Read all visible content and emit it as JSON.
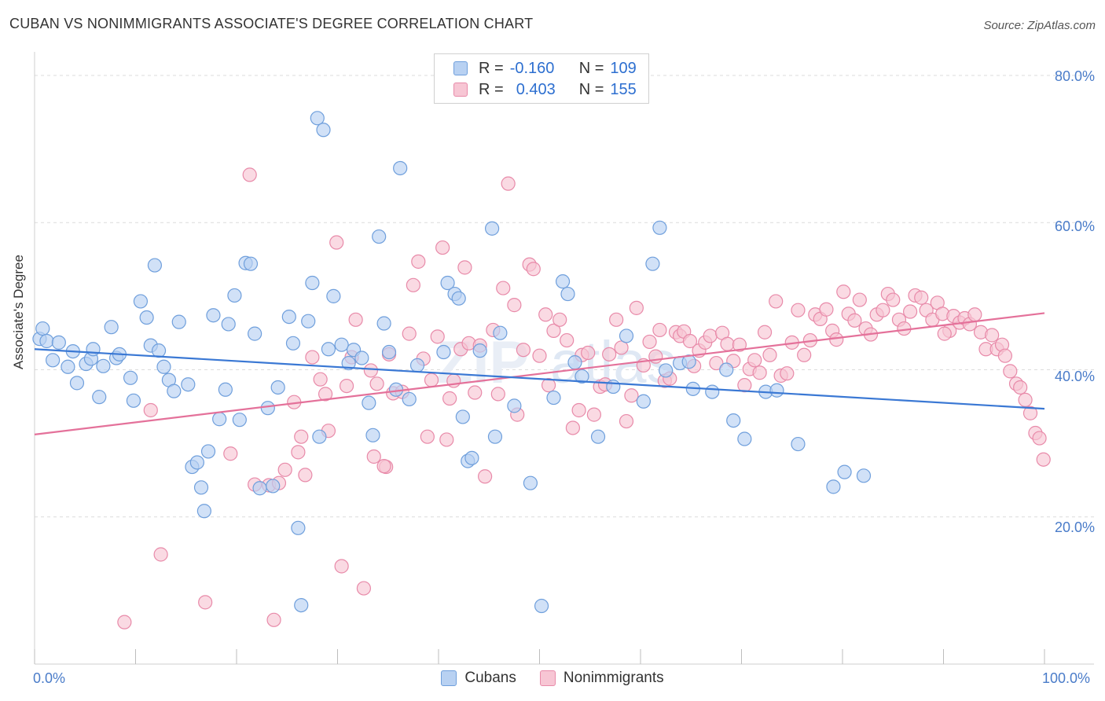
{
  "header": {
    "title": "CUBAN VS NONIMMIGRANTS ASSOCIATE'S DEGREE CORRELATION CHART",
    "source": "Source: ZipAtlas.com"
  },
  "colors": {
    "cuban_fill": "#b8d1f2",
    "cuban_stroke": "#6f9fdc",
    "cuban_line": "#3a78d4",
    "nonimm_fill": "#f7c6d4",
    "nonimm_stroke": "#e88aa9",
    "nonimm_line": "#e4719a",
    "value_text": "#2d6fd0"
  },
  "legend": {
    "rows": [
      {
        "r_label": "R =",
        "r_value": "-0.160",
        "n_label": "N =",
        "n_value": "109"
      },
      {
        "r_label": "R =",
        "r_value": "0.403",
        "n_label": "N =",
        "n_value": "155"
      }
    ]
  },
  "bottom_legend": {
    "cubans": "Cubans",
    "nonimmigrants": "Nonimmigrants"
  },
  "chart_data": {
    "type": "scatter",
    "title": "CUBAN VS NONIMMIGRANTS ASSOCIATE'S DEGREE CORRELATION CHART",
    "xlabel": "",
    "ylabel": "Associate's Degree",
    "xlim": [
      0,
      100
    ],
    "ylim": [
      0,
      82
    ],
    "x_tick_labels": [
      "0.0%",
      "100.0%"
    ],
    "y_ticks": [
      20,
      40,
      60,
      80
    ],
    "y_tick_labels": [
      "20.0%",
      "40.0%",
      "60.0%",
      "80.0%"
    ],
    "grid": true,
    "series": [
      {
        "name": "Cubans",
        "r": -0.16,
        "n": 109,
        "trend": {
          "x": [
            0,
            100
          ],
          "y": [
            42.8,
            34.7
          ]
        },
        "points": [
          [
            0.5,
            44.2
          ],
          [
            0.8,
            45.6
          ],
          [
            1.2,
            43.9
          ],
          [
            1.8,
            41.3
          ],
          [
            2.4,
            43.7
          ],
          [
            3.3,
            40.4
          ],
          [
            3.8,
            42.5
          ],
          [
            4.2,
            38.2
          ],
          [
            5.1,
            40.8
          ],
          [
            5.6,
            41.5
          ],
          [
            5.8,
            42.8
          ],
          [
            6.4,
            36.3
          ],
          [
            6.8,
            40.5
          ],
          [
            7.6,
            45.8
          ],
          [
            8.1,
            41.6
          ],
          [
            8.4,
            42.1
          ],
          [
            9.5,
            38.9
          ],
          [
            9.8,
            35.8
          ],
          [
            10.5,
            49.3
          ],
          [
            11.1,
            47.1
          ],
          [
            11.5,
            43.3
          ],
          [
            11.9,
            54.2
          ],
          [
            12.3,
            42.6
          ],
          [
            12.8,
            40.4
          ],
          [
            13.3,
            38.6
          ],
          [
            13.8,
            37.1
          ],
          [
            14.3,
            46.5
          ],
          [
            15.2,
            38.0
          ],
          [
            15.6,
            26.8
          ],
          [
            16.1,
            27.4
          ],
          [
            16.5,
            24.0
          ],
          [
            16.8,
            20.8
          ],
          [
            17.2,
            28.9
          ],
          [
            17.7,
            47.4
          ],
          [
            18.3,
            33.3
          ],
          [
            18.9,
            37.3
          ],
          [
            19.2,
            46.2
          ],
          [
            19.8,
            50.1
          ],
          [
            20.3,
            33.2
          ],
          [
            20.9,
            54.5
          ],
          [
            21.4,
            54.4
          ],
          [
            21.8,
            44.9
          ],
          [
            22.3,
            23.9
          ],
          [
            23.1,
            34.8
          ],
          [
            23.6,
            24.2
          ],
          [
            24.1,
            37.6
          ],
          [
            25.2,
            47.2
          ],
          [
            25.6,
            43.6
          ],
          [
            26.1,
            18.5
          ],
          [
            26.4,
            8.0
          ],
          [
            27.1,
            46.6
          ],
          [
            27.5,
            51.8
          ],
          [
            28.2,
            30.9
          ],
          [
            29.1,
            42.8
          ],
          [
            29.6,
            50.0
          ],
          [
            30.4,
            43.4
          ],
          [
            31.1,
            40.9
          ],
          [
            31.6,
            42.7
          ],
          [
            32.4,
            41.6
          ],
          [
            33.1,
            35.5
          ],
          [
            33.5,
            31.1
          ],
          [
            34.1,
            58.1
          ],
          [
            34.6,
            46.3
          ],
          [
            35.1,
            42.4
          ],
          [
            35.8,
            37.3
          ],
          [
            36.2,
            67.4
          ],
          [
            37.1,
            36.0
          ],
          [
            37.9,
            40.6
          ],
          [
            28.0,
            74.2
          ],
          [
            28.6,
            72.6
          ],
          [
            40.5,
            42.4
          ],
          [
            40.9,
            51.8
          ],
          [
            41.6,
            50.3
          ],
          [
            42.0,
            49.7
          ],
          [
            42.4,
            33.6
          ],
          [
            42.9,
            27.6
          ],
          [
            43.3,
            28.0
          ],
          [
            44.1,
            42.6
          ],
          [
            45.3,
            59.2
          ],
          [
            45.6,
            30.9
          ],
          [
            46.1,
            45.0
          ],
          [
            47.5,
            35.1
          ],
          [
            49.1,
            24.6
          ],
          [
            50.2,
            7.9
          ],
          [
            51.4,
            36.2
          ],
          [
            52.3,
            52.0
          ],
          [
            52.8,
            50.3
          ],
          [
            53.5,
            41.0
          ],
          [
            54.2,
            39.1
          ],
          [
            55.8,
            30.9
          ],
          [
            57.3,
            37.7
          ],
          [
            58.6,
            44.6
          ],
          [
            60.3,
            35.7
          ],
          [
            61.2,
            54.4
          ],
          [
            61.9,
            59.3
          ],
          [
            62.5,
            39.9
          ],
          [
            63.9,
            40.9
          ],
          [
            64.8,
            41.1
          ],
          [
            65.2,
            37.4
          ],
          [
            67.1,
            37.0
          ],
          [
            68.5,
            40.0
          ],
          [
            69.2,
            33.1
          ],
          [
            70.3,
            30.6
          ],
          [
            72.4,
            37.0
          ],
          [
            73.5,
            37.2
          ],
          [
            75.6,
            29.9
          ],
          [
            79.1,
            24.1
          ],
          [
            80.2,
            26.1
          ],
          [
            82.1,
            25.6
          ]
        ]
      },
      {
        "name": "Nonimmigrants",
        "r": 0.403,
        "n": 155,
        "trend": {
          "x": [
            0,
            100
          ],
          "y": [
            31.2,
            47.7
          ]
        },
        "points": [
          [
            8.9,
            5.7
          ],
          [
            11.5,
            34.5
          ],
          [
            12.5,
            14.9
          ],
          [
            16.9,
            8.4
          ],
          [
            19.4,
            28.6
          ],
          [
            21.3,
            66.5
          ],
          [
            21.8,
            24.4
          ],
          [
            23.2,
            24.3
          ],
          [
            23.7,
            6.0
          ],
          [
            24.2,
            24.6
          ],
          [
            24.8,
            26.4
          ],
          [
            25.7,
            35.6
          ],
          [
            26.1,
            28.8
          ],
          [
            26.4,
            30.9
          ],
          [
            26.8,
            25.7
          ],
          [
            27.5,
            41.7
          ],
          [
            28.3,
            38.7
          ],
          [
            28.8,
            36.7
          ],
          [
            29.1,
            31.7
          ],
          [
            29.9,
            57.3
          ],
          [
            30.4,
            13.3
          ],
          [
            30.9,
            37.8
          ],
          [
            31.4,
            41.7
          ],
          [
            31.8,
            46.8
          ],
          [
            32.6,
            10.3
          ],
          [
            33.3,
            39.9
          ],
          [
            33.6,
            28.2
          ],
          [
            33.9,
            38.1
          ],
          [
            34.8,
            26.8
          ],
          [
            35.1,
            42.1
          ],
          [
            35.5,
            36.8
          ],
          [
            36.4,
            37.0
          ],
          [
            37.1,
            44.9
          ],
          [
            37.5,
            51.5
          ],
          [
            38.0,
            54.7
          ],
          [
            38.5,
            41.5
          ],
          [
            38.9,
            30.9
          ],
          [
            39.3,
            38.6
          ],
          [
            39.9,
            44.5
          ],
          [
            40.4,
            56.6
          ],
          [
            40.8,
            30.5
          ],
          [
            41.1,
            36.1
          ],
          [
            41.5,
            38.5
          ],
          [
            42.2,
            42.8
          ],
          [
            42.6,
            53.9
          ],
          [
            43.0,
            43.6
          ],
          [
            43.6,
            36.9
          ],
          [
            44.1,
            43.3
          ],
          [
            44.6,
            25.5
          ],
          [
            45.4,
            45.4
          ],
          [
            45.9,
            36.7
          ],
          [
            46.4,
            51.1
          ],
          [
            46.9,
            65.3
          ],
          [
            47.5,
            48.8
          ],
          [
            47.8,
            33.9
          ],
          [
            48.4,
            42.7
          ],
          [
            49.0,
            54.3
          ],
          [
            49.4,
            53.7
          ],
          [
            50.0,
            41.9
          ],
          [
            50.6,
            47.5
          ],
          [
            50.9,
            37.9
          ],
          [
            51.4,
            45.3
          ],
          [
            52.0,
            46.8
          ],
          [
            52.7,
            44.0
          ],
          [
            53.3,
            32.1
          ],
          [
            53.9,
            34.5
          ],
          [
            54.2,
            42.0
          ],
          [
            54.8,
            42.3
          ],
          [
            55.4,
            33.9
          ],
          [
            56.0,
            37.7
          ],
          [
            56.5,
            38.0
          ],
          [
            56.9,
            42.1
          ],
          [
            57.6,
            46.8
          ],
          [
            58.1,
            43.0
          ],
          [
            58.6,
            33.0
          ],
          [
            59.1,
            36.5
          ],
          [
            59.6,
            48.4
          ],
          [
            60.3,
            40.6
          ],
          [
            60.9,
            43.8
          ],
          [
            61.5,
            41.8
          ],
          [
            61.9,
            45.4
          ],
          [
            62.4,
            38.5
          ],
          [
            62.9,
            38.8
          ],
          [
            63.5,
            45.1
          ],
          [
            63.9,
            44.6
          ],
          [
            64.3,
            45.2
          ],
          [
            64.9,
            43.9
          ],
          [
            65.3,
            40.5
          ],
          [
            65.8,
            42.6
          ],
          [
            66.4,
            43.7
          ],
          [
            66.9,
            44.6
          ],
          [
            67.5,
            40.9
          ],
          [
            68.1,
            45.0
          ],
          [
            68.6,
            43.5
          ],
          [
            69.2,
            41.2
          ],
          [
            69.8,
            43.4
          ],
          [
            70.3,
            37.9
          ],
          [
            70.8,
            40.1
          ],
          [
            71.3,
            41.3
          ],
          [
            71.8,
            39.6
          ],
          [
            72.3,
            45.1
          ],
          [
            72.8,
            42.0
          ],
          [
            73.4,
            49.3
          ],
          [
            73.9,
            39.2
          ],
          [
            74.5,
            39.5
          ],
          [
            75.0,
            43.7
          ],
          [
            75.6,
            48.1
          ],
          [
            76.2,
            42.0
          ],
          [
            76.8,
            44.0
          ],
          [
            77.3,
            47.5
          ],
          [
            77.8,
            46.9
          ],
          [
            78.4,
            48.2
          ],
          [
            79.0,
            45.3
          ],
          [
            79.4,
            44.1
          ],
          [
            80.1,
            50.6
          ],
          [
            80.6,
            47.6
          ],
          [
            81.2,
            46.7
          ],
          [
            81.7,
            49.5
          ],
          [
            82.3,
            45.6
          ],
          [
            82.8,
            44.8
          ],
          [
            83.4,
            47.5
          ],
          [
            84.0,
            48.1
          ],
          [
            84.5,
            50.3
          ],
          [
            85.0,
            49.5
          ],
          [
            85.6,
            46.8
          ],
          [
            86.1,
            45.6
          ],
          [
            86.7,
            47.9
          ],
          [
            87.2,
            50.1
          ],
          [
            87.8,
            49.8
          ],
          [
            88.3,
            48.1
          ],
          [
            88.9,
            46.8
          ],
          [
            89.4,
            49.1
          ],
          [
            89.9,
            47.6
          ],
          [
            90.6,
            45.3
          ],
          [
            91.0,
            47.3
          ],
          [
            91.6,
            46.4
          ],
          [
            92.1,
            47.0
          ],
          [
            92.6,
            46.2
          ],
          [
            93.1,
            47.5
          ],
          [
            93.7,
            45.1
          ],
          [
            94.2,
            42.8
          ],
          [
            94.8,
            44.7
          ],
          [
            95.3,
            42.8
          ],
          [
            95.8,
            43.4
          ],
          [
            96.1,
            41.9
          ],
          [
            96.6,
            39.8
          ],
          [
            97.2,
            38.1
          ],
          [
            97.6,
            37.6
          ],
          [
            98.1,
            35.9
          ],
          [
            98.6,
            34.1
          ],
          [
            99.1,
            31.4
          ],
          [
            99.5,
            30.7
          ],
          [
            99.9,
            27.8
          ],
          [
            34.6,
            26.9
          ],
          [
            90.1,
            44.9
          ]
        ]
      }
    ]
  }
}
